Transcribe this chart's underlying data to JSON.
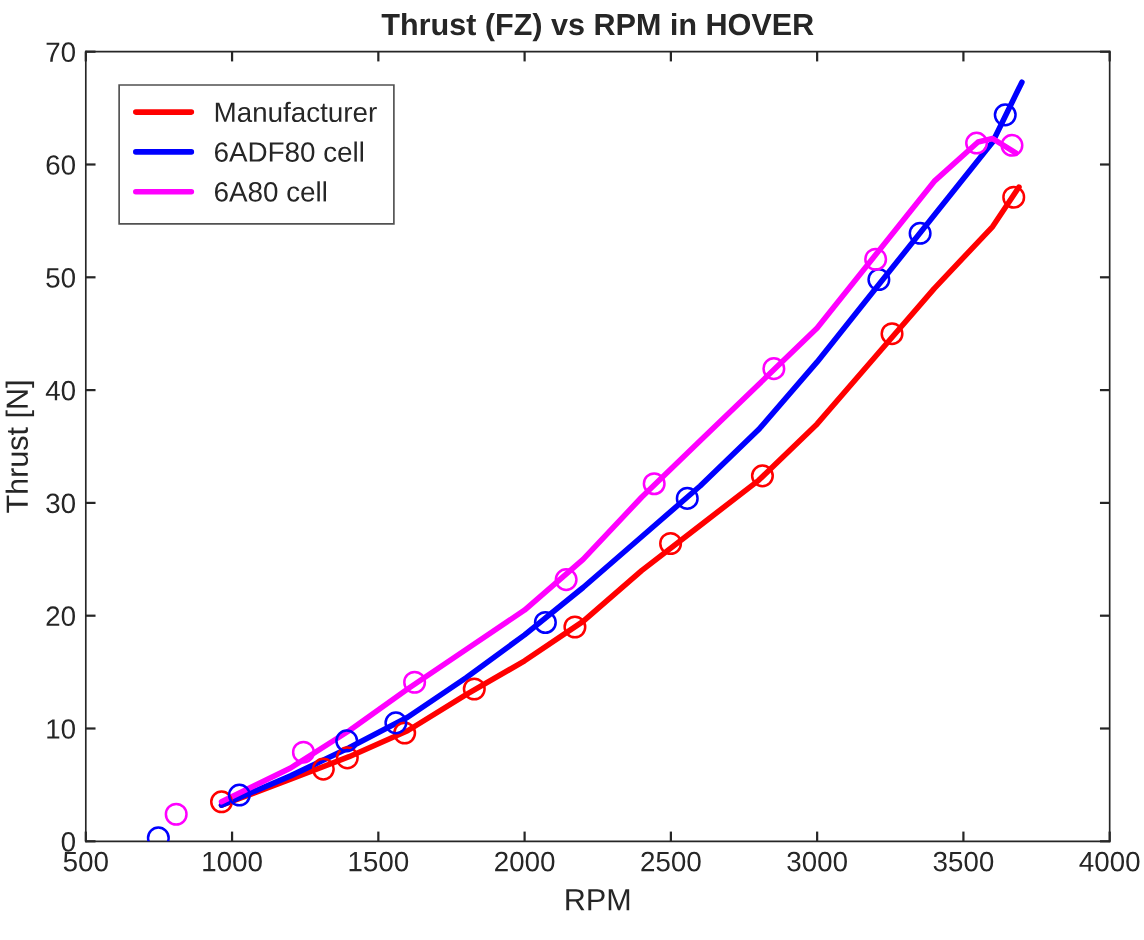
{
  "chart_data": {
    "type": "line",
    "title": "Thrust (FZ) vs RPM in HOVER",
    "xlabel": "RPM",
    "ylabel": "Thrust [N]",
    "xlim": [
      500,
      4000
    ],
    "xticks": [
      500,
      1000,
      1500,
      2000,
      2500,
      3000,
      3500,
      4000
    ],
    "ylim": [
      0,
      70
    ],
    "yticks": [
      0,
      10,
      20,
      30,
      40,
      50,
      60,
      70
    ],
    "grid": false,
    "legend": "top left",
    "series": [
      {
        "name": "Manufacturer",
        "color": "#ff0000",
        "marker": "none",
        "x": [
          964,
          1200,
          1400,
          1600,
          1800,
          2000,
          2200,
          2400,
          2600,
          2800,
          3000,
          3200,
          3400,
          3600,
          3690
        ],
        "values": [
          3.2,
          5.5,
          7.5,
          9.8,
          13.0,
          16.0,
          19.5,
          24.0,
          28.0,
          32.0,
          37.0,
          43.0,
          49.0,
          54.5,
          58.0
        ]
      },
      {
        "name": "6ADF80 cell",
        "color": "#0000ff",
        "marker": "none",
        "x": [
          964,
          1200,
          1400,
          1600,
          1800,
          2000,
          2200,
          2400,
          2600,
          2800,
          3000,
          3200,
          3400,
          3600,
          3700
        ],
        "values": [
          3.2,
          5.8,
          8.3,
          11.0,
          14.5,
          18.3,
          22.5,
          27.0,
          31.5,
          36.5,
          42.5,
          49.0,
          55.5,
          62.0,
          67.3
        ]
      },
      {
        "name": "6A80 cell",
        "color": "#ff00ff",
        "marker": "none",
        "x": [
          964,
          1200,
          1400,
          1600,
          1800,
          2000,
          2200,
          2400,
          2600,
          2800,
          3000,
          3200,
          3400,
          3550,
          3600,
          3680
        ],
        "values": [
          3.5,
          6.5,
          9.8,
          13.5,
          17.0,
          20.5,
          25.0,
          30.5,
          35.5,
          40.5,
          45.5,
          52.0,
          58.5,
          62.0,
          62.3,
          61.0
        ]
      },
      {
        "type": "scatter",
        "color": "#ff0000",
        "marker": "circle",
        "x": [
          964,
          1312,
          1394,
          1590,
          1828,
          2172,
          2499,
          2813,
          3256,
          3672
        ],
        "values": [
          3.5,
          6.4,
          7.4,
          9.6,
          13.5,
          19.0,
          26.4,
          32.4,
          45.0,
          57.1
        ]
      },
      {
        "type": "scatter",
        "color": "#0000ff",
        "marker": "circle",
        "x": [
          748,
          1025,
          1392,
          1560,
          2071,
          2556,
          3211,
          3352,
          3643
        ],
        "values": [
          0.3,
          4.1,
          8.9,
          10.5,
          19.4,
          30.4,
          49.8,
          53.9,
          64.4
        ]
      },
      {
        "type": "scatter",
        "color": "#ff00ff",
        "marker": "circle",
        "x": [
          809,
          1244,
          1624,
          2142,
          2443,
          2852,
          3200,
          3545,
          3666
        ],
        "values": [
          2.4,
          7.9,
          14.1,
          23.2,
          31.7,
          41.9,
          51.6,
          61.9,
          61.7
        ]
      }
    ]
  }
}
